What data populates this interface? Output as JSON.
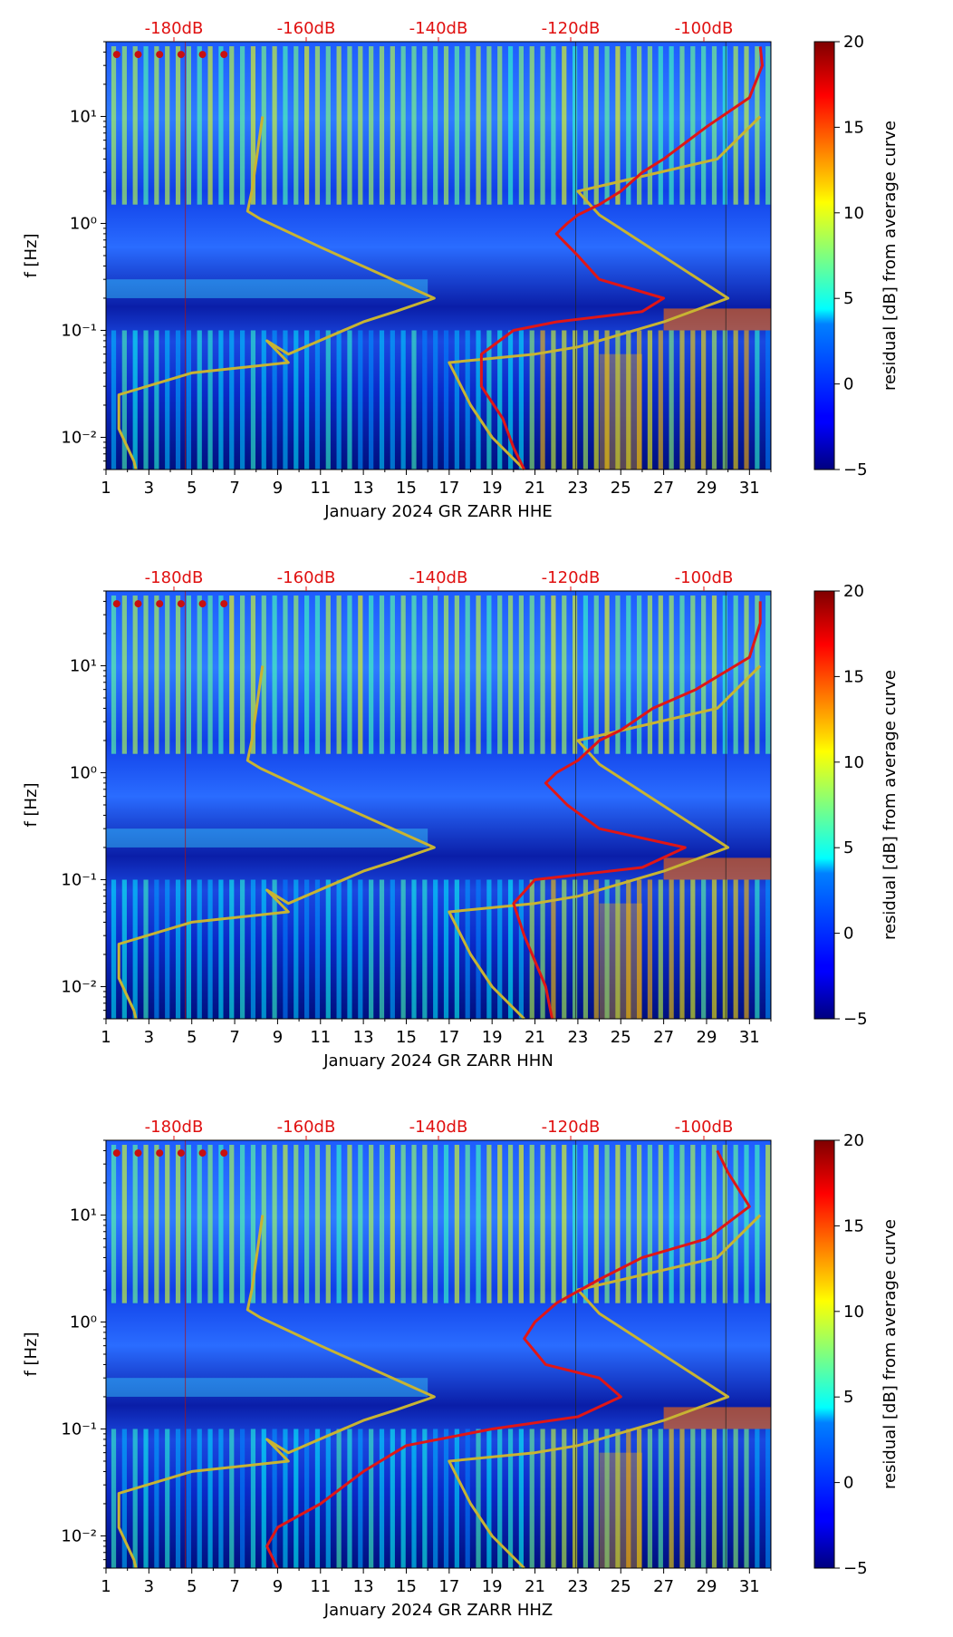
{
  "chart_data": [
    {
      "type": "heatmap",
      "title": "",
      "xlabel": "January 2024 GR ZARR  HHE",
      "ylabel": "f [Hz]",
      "x_ticks": [
        "1",
        "3",
        "5",
        "7",
        "9",
        "11",
        "13",
        "15",
        "17",
        "19",
        "21",
        "23",
        "25",
        "27",
        "29",
        "31"
      ],
      "xlim": [
        1,
        32
      ],
      "ylim": [
        0.005,
        50
      ],
      "y_scale": "log",
      "y_ticks": [
        {
          "label": "10⁻²",
          "value": 0.01
        },
        {
          "label": "10⁻¹",
          "value": 0.1
        },
        {
          "label": "10⁰",
          "value": 1
        },
        {
          "label": "10¹",
          "value": 10
        }
      ],
      "db_ticks": [
        "-180dB",
        "-160dB",
        "-140dB",
        "-120dB",
        "-100dB"
      ],
      "colorbar": {
        "label": "residual [dB] from average curve",
        "min": -5,
        "max": 20,
        "ticks": [
          "−5",
          "0",
          "5",
          "10",
          "15",
          "20"
        ]
      },
      "series": [
        {
          "name": "noise model low/high (yellow)",
          "color": "#c8b432",
          "day": [
            8.3,
            7.8,
            7.6,
            8.2,
            11,
            16.3,
            14.5,
            13,
            9.5,
            8.5,
            9.5,
            5,
            1.6,
            1.6,
            2.3,
            2.4
          ],
          "freq": [
            10,
            2,
            1.3,
            1.1,
            0.6,
            0.2,
            0.15,
            0.12,
            0.06,
            0.08,
            0.05,
            0.04,
            0.025,
            0.012,
            0.006,
            0.005
          ]
        },
        {
          "name": "noise model high (yellow)",
          "color": "#c8b432",
          "day": [
            31.5,
            29.5,
            23,
            24,
            30,
            27,
            23,
            21,
            17,
            18,
            19,
            20.5
          ],
          "freq": [
            10,
            4,
            2,
            1.2,
            0.2,
            0.12,
            0.07,
            0.06,
            0.05,
            0.02,
            0.01,
            0.005
          ]
        },
        {
          "name": "PSD mode (red)",
          "color": "#e01616",
          "day": [
            31.5,
            31.6,
            31,
            29,
            27,
            26,
            25,
            24,
            23,
            22.5,
            22,
            23,
            24,
            27,
            26,
            22,
            20,
            18.5,
            18.5,
            19.5,
            20,
            20.5
          ],
          "freq": [
            45,
            30,
            15,
            8,
            4,
            3,
            2,
            1.5,
            1.2,
            1,
            0.8,
            0.5,
            0.3,
            0.2,
            0.15,
            0.12,
            0.1,
            0.06,
            0.03,
            0.015,
            0.008,
            0.005
          ]
        }
      ]
    },
    {
      "type": "heatmap",
      "title": "",
      "xlabel": "January 2024 GR ZARR  HHN",
      "ylabel": "f [Hz]",
      "x_ticks": [
        "1",
        "3",
        "5",
        "7",
        "9",
        "11",
        "13",
        "15",
        "17",
        "19",
        "21",
        "23",
        "25",
        "27",
        "29",
        "31"
      ],
      "xlim": [
        1,
        32
      ],
      "ylim": [
        0.005,
        50
      ],
      "y_scale": "log",
      "y_ticks": [
        {
          "label": "10⁻²",
          "value": 0.01
        },
        {
          "label": "10⁻¹",
          "value": 0.1
        },
        {
          "label": "10⁰",
          "value": 1
        },
        {
          "label": "10¹",
          "value": 10
        }
      ],
      "db_ticks": [
        "-180dB",
        "-160dB",
        "-140dB",
        "-120dB",
        "-100dB"
      ],
      "colorbar": {
        "label": "residual [dB] from average curve",
        "min": -5,
        "max": 20,
        "ticks": [
          "−5",
          "0",
          "5",
          "10",
          "15",
          "20"
        ]
      },
      "series": [
        {
          "name": "noise model low/high (yellow)",
          "color": "#c8b432",
          "day": [
            8.3,
            7.8,
            7.6,
            8.2,
            11,
            16.3,
            14.5,
            13,
            9.5,
            8.5,
            9.5,
            5,
            1.6,
            1.6,
            2.3,
            2.4
          ],
          "freq": [
            10,
            2,
            1.3,
            1.1,
            0.6,
            0.2,
            0.15,
            0.12,
            0.06,
            0.08,
            0.05,
            0.04,
            0.025,
            0.012,
            0.006,
            0.005
          ]
        },
        {
          "name": "noise model high (yellow)",
          "color": "#c8b432",
          "day": [
            31.5,
            29.5,
            23,
            24,
            30,
            27,
            23,
            21,
            17,
            18,
            19,
            20.5
          ],
          "freq": [
            10,
            4,
            2,
            1.2,
            0.2,
            0.12,
            0.07,
            0.06,
            0.05,
            0.02,
            0.01,
            0.005
          ]
        },
        {
          "name": "PSD mode (red)",
          "color": "#e01616",
          "day": [
            31.5,
            31.5,
            31,
            28.5,
            26.5,
            25,
            24,
            23,
            22,
            21.5,
            22.5,
            24,
            28,
            26,
            21,
            20,
            20.5,
            21.5,
            21.8
          ],
          "freq": [
            40,
            25,
            12,
            6,
            4,
            2.5,
            2,
            1.3,
            1,
            0.8,
            0.5,
            0.3,
            0.2,
            0.13,
            0.1,
            0.06,
            0.03,
            0.01,
            0.005
          ]
        }
      ]
    },
    {
      "type": "heatmap",
      "title": "",
      "xlabel": "January 2024 GR ZARR  HHZ",
      "ylabel": "f [Hz]",
      "x_ticks": [
        "1",
        "3",
        "5",
        "7",
        "9",
        "11",
        "13",
        "15",
        "17",
        "19",
        "21",
        "23",
        "25",
        "27",
        "29",
        "31"
      ],
      "xlim": [
        1,
        32
      ],
      "ylim": [
        0.005,
        50
      ],
      "y_scale": "log",
      "y_ticks": [
        {
          "label": "10⁻²",
          "value": 0.01
        },
        {
          "label": "10⁻¹",
          "value": 0.1
        },
        {
          "label": "10⁰",
          "value": 1
        },
        {
          "label": "10¹",
          "value": 10
        }
      ],
      "db_ticks": [
        "-180dB",
        "-160dB",
        "-140dB",
        "-120dB",
        "-100dB"
      ],
      "colorbar": {
        "label": "residual [dB] from average curve",
        "min": -5,
        "max": 20,
        "ticks": [
          "−5",
          "0",
          "5",
          "10",
          "15",
          "20"
        ]
      },
      "series": [
        {
          "name": "noise model low/high (yellow)",
          "color": "#c8b432",
          "day": [
            8.3,
            7.8,
            7.6,
            8.2,
            11,
            16.3,
            14.5,
            13,
            9.5,
            8.5,
            9.5,
            5,
            1.6,
            1.6,
            2.3,
            2.4
          ],
          "freq": [
            10,
            2,
            1.3,
            1.1,
            0.6,
            0.2,
            0.15,
            0.12,
            0.06,
            0.08,
            0.05,
            0.04,
            0.025,
            0.012,
            0.006,
            0.005
          ]
        },
        {
          "name": "noise model high (yellow)",
          "color": "#c8b432",
          "day": [
            31.5,
            29.5,
            23,
            24,
            30,
            27,
            23,
            21,
            17,
            18,
            19,
            20.5
          ],
          "freq": [
            10,
            4,
            2,
            1.2,
            0.2,
            0.12,
            0.07,
            0.06,
            0.05,
            0.02,
            0.01,
            0.005
          ]
        },
        {
          "name": "PSD mode (red)",
          "color": "#e01616",
          "day": [
            29.5,
            30,
            31,
            29,
            26,
            24,
            22,
            21,
            20.5,
            21.5,
            24,
            25,
            23,
            19,
            15,
            13,
            11,
            9,
            8.5,
            9
          ],
          "freq": [
            40,
            25,
            12,
            6,
            4,
            2.5,
            1.5,
            1,
            0.7,
            0.4,
            0.3,
            0.2,
            0.13,
            0.1,
            0.07,
            0.04,
            0.02,
            0.012,
            0.008,
            0.005
          ]
        }
      ]
    }
  ]
}
